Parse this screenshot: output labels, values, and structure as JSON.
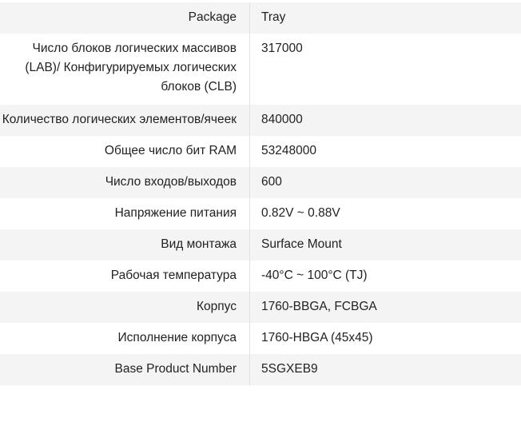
{
  "specs": [
    {
      "label": "Package",
      "value": "Tray"
    },
    {
      "label": "Число блоков логических массивов (LAB)/ Конфигурируемых логических блоков (CLB)",
      "value": "317000"
    },
    {
      "label": "Количество логических элементов/ячеек",
      "value": "840000"
    },
    {
      "label": "Общее число бит RAM",
      "value": "53248000"
    },
    {
      "label": "Число входов/выходов",
      "value": "600"
    },
    {
      "label": "Напряжение питания",
      "value": "0.82V ~ 0.88V"
    },
    {
      "label": "Вид монтажа",
      "value": "Surface Mount"
    },
    {
      "label": "Рабочая температура",
      "value": "-40°C ~ 100°C (TJ)"
    },
    {
      "label": "Корпус",
      "value": "1760-BBGA, FCBGA"
    },
    {
      "label": "Исполнение корпуса",
      "value": "1760-HBGA (45x45)"
    },
    {
      "label": "Base Product Number",
      "value": "5SGXEB9"
    }
  ]
}
